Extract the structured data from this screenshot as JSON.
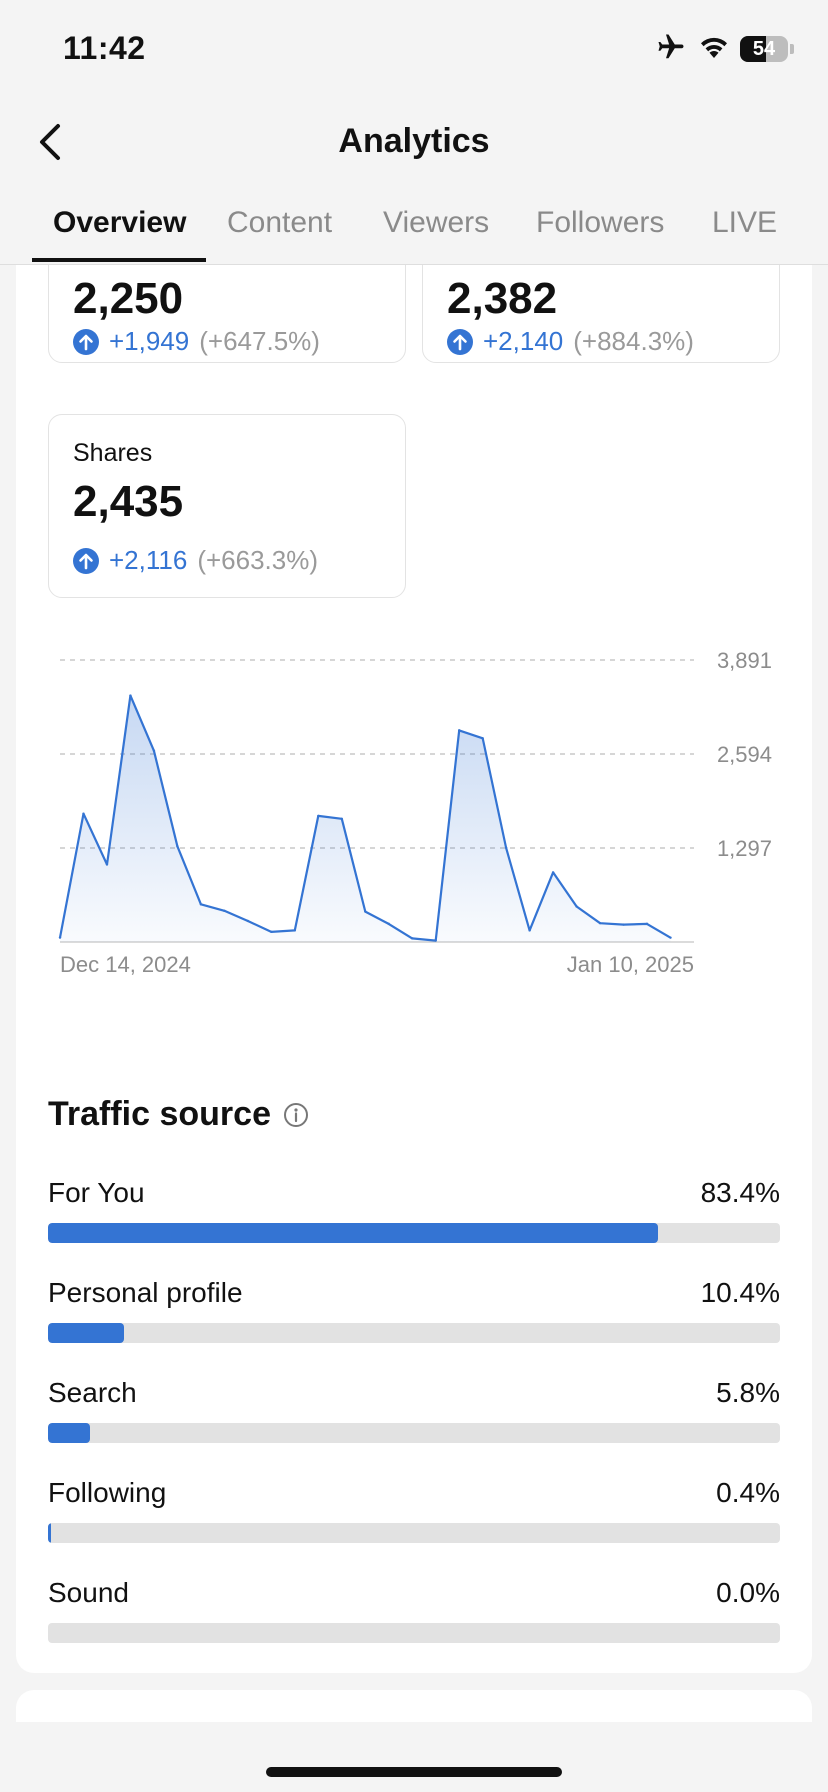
{
  "status_bar": {
    "time": "11:42",
    "battery": "54",
    "battery_level": 0.54
  },
  "nav": {
    "title": "Analytics"
  },
  "tabs": [
    {
      "label": "Overview",
      "active": true
    },
    {
      "label": "Content",
      "active": false
    },
    {
      "label": "Viewers",
      "active": false
    },
    {
      "label": "Followers",
      "active": false
    },
    {
      "label": "LIVE",
      "active": false
    }
  ],
  "metrics": [
    {
      "label": "",
      "value": "2,250",
      "change": "+1,949",
      "change_pct": "(+647.5%)"
    },
    {
      "label": "",
      "value": "2,382",
      "change": "+2,140",
      "change_pct": "(+884.3%)"
    },
    {
      "label": "Shares",
      "value": "2,435",
      "change": "+2,116",
      "change_pct": "(+663.3%)"
    }
  ],
  "chart_data": {
    "type": "area",
    "y_tick_labels": [
      "3,891",
      "2,594",
      "1,297"
    ],
    "y_ticks": [
      3891,
      2594,
      1297
    ],
    "ylim": [
      0,
      3891
    ],
    "x_tick_labels": [
      "Dec 14, 2024",
      "Jan 10, 2025"
    ],
    "x": [
      "Dec 14, 2024",
      "Dec 15, 2024",
      "Dec 16, 2024",
      "Dec 17, 2024",
      "Dec 18, 2024",
      "Dec 19, 2024",
      "Dec 20, 2024",
      "Dec 21, 2024",
      "Dec 22, 2024",
      "Dec 23, 2024",
      "Dec 24, 2024",
      "Dec 25, 2024",
      "Dec 26, 2024",
      "Dec 27, 2024",
      "Dec 28, 2024",
      "Dec 29, 2024",
      "Dec 30, 2024",
      "Dec 31, 2024",
      "Jan 1, 2025",
      "Jan 2, 2025",
      "Jan 3, 2025",
      "Jan 4, 2025",
      "Jan 5, 2025",
      "Jan 6, 2025",
      "Jan 7, 2025",
      "Jan 8, 2025",
      "Jan 9, 2025",
      "Jan 10, 2025"
    ],
    "values": [
      60,
      1770,
      1070,
      3400,
      2640,
      1320,
      520,
      430,
      290,
      140,
      160,
      1740,
      1700,
      420,
      250,
      50,
      20,
      2920,
      2810,
      1300,
      160,
      960,
      490,
      260,
      240,
      250,
      60,
      null
    ],
    "grid": true,
    "color": "#3474d3"
  },
  "traffic": {
    "title": "Traffic source",
    "items": [
      {
        "name": "For You",
        "value": "83.4%",
        "fraction": 0.834
      },
      {
        "name": "Personal profile",
        "value": "10.4%",
        "fraction": 0.104
      },
      {
        "name": "Search",
        "value": "5.8%",
        "fraction": 0.058
      },
      {
        "name": "Following",
        "value": "0.4%",
        "fraction": 0.004
      },
      {
        "name": "Sound",
        "value": "0.0%",
        "fraction": 0.0
      }
    ]
  },
  "colors": {
    "accent": "#3474d3",
    "muted": "#9a9a9a",
    "background": "#f4f4f4"
  }
}
